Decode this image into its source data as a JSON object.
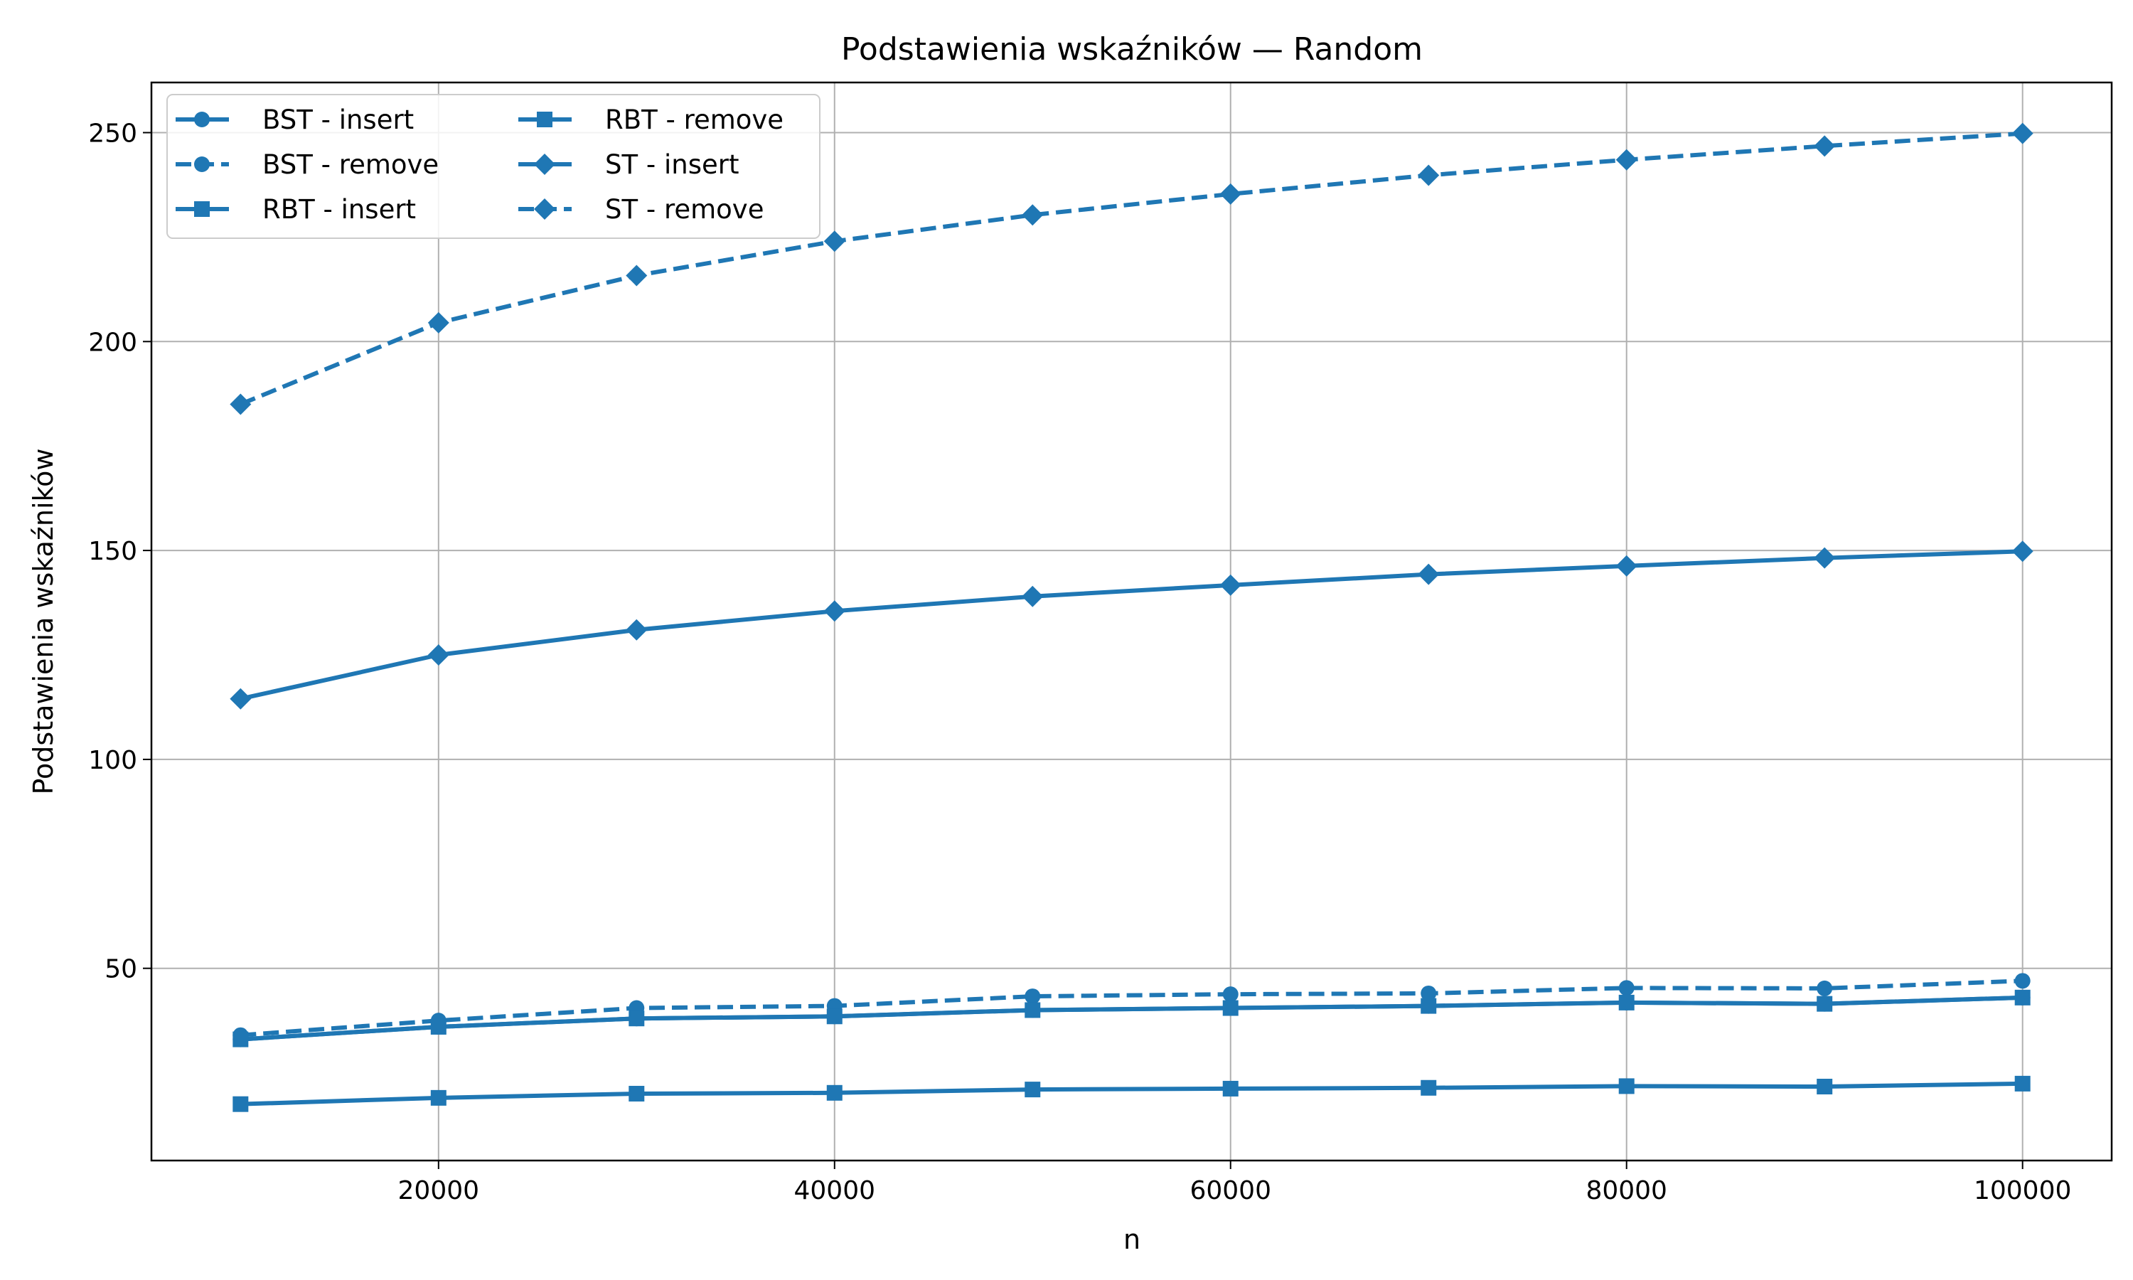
{
  "chart_data": {
    "type": "line",
    "title": "Podstawienia wskaźników — Random",
    "xlabel": "n",
    "ylabel": "Podstawienia wskaźników",
    "xlim": [
      5500,
      104500
    ],
    "ylim": [
      4,
      262
    ],
    "xticks": [
      20000,
      40000,
      60000,
      80000,
      100000
    ],
    "yticks": [
      50,
      100,
      150,
      200,
      250
    ],
    "grid": true,
    "legend_position": "top-left",
    "legend_columns": 2,
    "color": "#1f77b4",
    "x": [
      10000,
      20000,
      30000,
      40000,
      50000,
      60000,
      70000,
      80000,
      90000,
      100000
    ],
    "series": [
      {
        "name": "BST - insert",
        "marker": "circle",
        "linestyle": "solid",
        "values": [
          33.0,
          36.0,
          38.0,
          38.5,
          40.0,
          40.5,
          41.0,
          41.8,
          41.5,
          43.0
        ]
      },
      {
        "name": "BST - remove",
        "marker": "circle",
        "linestyle": "dashed",
        "values": [
          34.0,
          37.5,
          40.5,
          41.0,
          43.3,
          43.8,
          44.0,
          45.3,
          45.2,
          47.0
        ]
      },
      {
        "name": "RBT - insert",
        "marker": "square",
        "linestyle": "solid",
        "values": [
          33.0,
          36.0,
          38.0,
          38.5,
          40.0,
          40.5,
          41.0,
          41.8,
          41.5,
          43.0
        ]
      },
      {
        "name": "RBT - remove",
        "marker": "square",
        "linestyle": "solid",
        "values": [
          17.5,
          19.0,
          20.0,
          20.2,
          21.0,
          21.2,
          21.4,
          21.8,
          21.7,
          22.4
        ]
      },
      {
        "name": "ST - insert",
        "marker": "diamond",
        "linestyle": "solid",
        "values": [
          114.5,
          125.0,
          131.0,
          135.5,
          139.0,
          141.7,
          144.3,
          146.3,
          148.2,
          149.8
        ]
      },
      {
        "name": "ST - remove",
        "marker": "diamond",
        "linestyle": "dashed",
        "values": [
          185.0,
          204.5,
          215.8,
          224.0,
          230.3,
          235.3,
          239.8,
          243.5,
          246.8,
          249.8
        ]
      }
    ]
  }
}
